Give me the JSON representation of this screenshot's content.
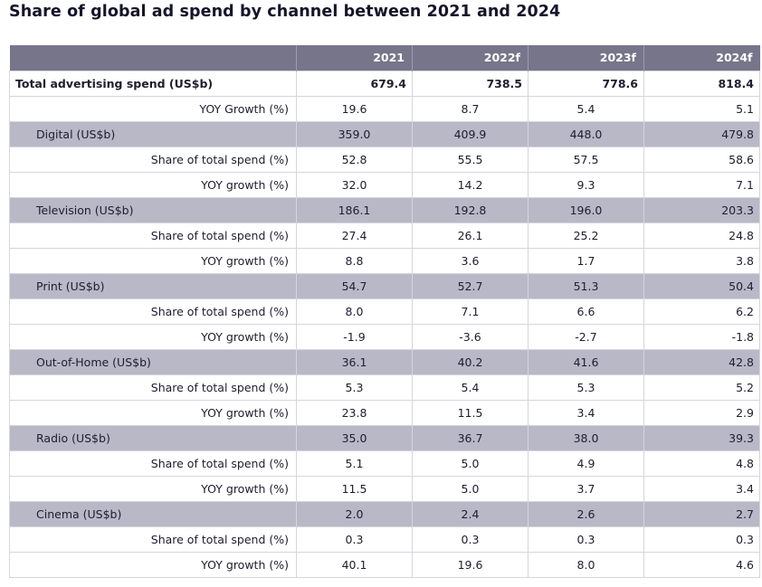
{
  "title": "Share of global ad spend by channel between 2021 and 2024",
  "colors": {
    "header_bg": "#77758a",
    "channel_bg": "#b9b8c7",
    "grid": "#d6d5dd"
  },
  "chart_data": {
    "type": "table",
    "columns": [
      "",
      "2021",
      "2022f",
      "2023f",
      "2024f"
    ],
    "rows": [
      {
        "kind": "total",
        "label": "Total advertising spend (US$b)",
        "values": [
          "679.4",
          "738.5",
          "778.6",
          "818.4"
        ]
      },
      {
        "kind": "metric",
        "label": "YOY Growth (%)",
        "values": [
          "19.6",
          "8.7",
          "5.4",
          "5.1"
        ]
      },
      {
        "kind": "channel",
        "label": "Digital (US$b)",
        "values": [
          "359.0",
          "409.9",
          "448.0",
          "479.8"
        ]
      },
      {
        "kind": "metric",
        "label": "Share of total spend (%)",
        "values": [
          "52.8",
          "55.5",
          "57.5",
          "58.6"
        ]
      },
      {
        "kind": "metric",
        "label": "YOY growth (%)",
        "values": [
          "32.0",
          "14.2",
          "9.3",
          "7.1"
        ]
      },
      {
        "kind": "channel",
        "label": "Television (US$b)",
        "values": [
          "186.1",
          "192.8",
          "196.0",
          "203.3"
        ]
      },
      {
        "kind": "metric",
        "label": "Share of total spend (%)",
        "values": [
          "27.4",
          "26.1",
          "25.2",
          "24.8"
        ]
      },
      {
        "kind": "metric",
        "label": "YOY growth (%)",
        "values": [
          "8.8",
          "3.6",
          "1.7",
          "3.8"
        ]
      },
      {
        "kind": "channel",
        "label": "Print (US$b)",
        "values": [
          "54.7",
          "52.7",
          "51.3",
          "50.4"
        ]
      },
      {
        "kind": "metric",
        "label": "Share of total spend (%)",
        "values": [
          "8.0",
          "7.1",
          "6.6",
          "6.2"
        ]
      },
      {
        "kind": "metric",
        "label": "YOY growth (%)",
        "values": [
          "-1.9",
          "-3.6",
          "-2.7",
          "-1.8"
        ]
      },
      {
        "kind": "channel",
        "label": "Out-of-Home (US$b)",
        "values": [
          "36.1",
          "40.2",
          "41.6",
          "42.8"
        ]
      },
      {
        "kind": "metric",
        "label": "Share of total spend (%)",
        "values": [
          "5.3",
          "5.4",
          "5.3",
          "5.2"
        ]
      },
      {
        "kind": "metric",
        "label": "YOY growth (%)",
        "values": [
          "23.8",
          "11.5",
          "3.4",
          "2.9"
        ]
      },
      {
        "kind": "channel",
        "label": "Radio (US$b)",
        "values": [
          "35.0",
          "36.7",
          "38.0",
          "39.3"
        ]
      },
      {
        "kind": "metric",
        "label": "Share of total spend (%)",
        "values": [
          "5.1",
          "5.0",
          "4.9",
          "4.8"
        ]
      },
      {
        "kind": "metric",
        "label": "YOY growth (%)",
        "values": [
          "11.5",
          "5.0",
          "3.7",
          "3.4"
        ]
      },
      {
        "kind": "channel",
        "label": "Cinema (US$b)",
        "values": [
          "2.0",
          "2.4",
          "2.6",
          "2.7"
        ]
      },
      {
        "kind": "metric",
        "label": "Share of total spend (%)",
        "values": [
          "0.3",
          "0.3",
          "0.3",
          "0.3"
        ]
      },
      {
        "kind": "metric",
        "label": "YOY growth (%)",
        "values": [
          "40.1",
          "19.6",
          "8.0",
          "4.6"
        ]
      }
    ]
  }
}
